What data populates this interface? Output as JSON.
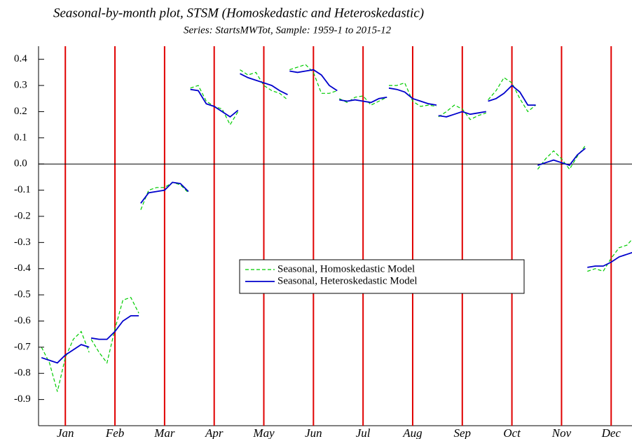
{
  "chart_data": {
    "type": "line",
    "title": "Seasonal-by-month plot, STSM (Homoskedastic and Heteroskedastic)",
    "subtitle": "Series: StartsMWTot, Sample: 1959-1 to 2015-12",
    "x": [
      0.52,
      0.68,
      0.84,
      1,
      1.16,
      1.32,
      1.48,
      1.5,
      1.52,
      1.68,
      1.84,
      2,
      2.16,
      2.32,
      2.48,
      2.5,
      2.52,
      2.68,
      2.84,
      3,
      3.16,
      3.32,
      3.48,
      3.5,
      3.52,
      3.68,
      3.84,
      4,
      4.16,
      4.32,
      4.48,
      4.5,
      4.52,
      4.68,
      4.84,
      5,
      5.16,
      5.32,
      5.48,
      5.5,
      5.52,
      5.68,
      5.84,
      6,
      6.16,
      6.32,
      6.48,
      6.5,
      6.52,
      6.68,
      6.84,
      7,
      7.16,
      7.32,
      7.48,
      7.5,
      7.52,
      7.68,
      7.84,
      8,
      8.16,
      8.32,
      8.48,
      8.5,
      8.52,
      8.68,
      8.84,
      9,
      9.16,
      9.32,
      9.48,
      9.5,
      9.52,
      9.68,
      9.84,
      10,
      10.16,
      10.32,
      10.48,
      10.5,
      10.52,
      10.68,
      10.84,
      11,
      11.16,
      11.32,
      11.48,
      11.5,
      11.52,
      11.68,
      11.84,
      12,
      12.16,
      12.32,
      12.48
    ],
    "series": [
      {
        "name": "Seasonal, Homoskedastic Model",
        "color": "#00cc00",
        "style": "dashed",
        "values": [
          -0.7,
          -0.76,
          -0.87,
          -0.74,
          -0.67,
          -0.64,
          -0.72,
          null,
          -0.67,
          -0.72,
          -0.76,
          -0.63,
          -0.52,
          -0.51,
          -0.57,
          null,
          -0.175,
          -0.1,
          -0.09,
          -0.09,
          -0.07,
          -0.08,
          -0.11,
          null,
          0.29,
          0.3,
          0.24,
          0.22,
          0.21,
          0.15,
          0.2,
          null,
          0.36,
          0.34,
          0.35,
          0.3,
          0.28,
          0.27,
          0.245,
          null,
          0.36,
          0.37,
          0.38,
          0.35,
          0.27,
          0.27,
          0.28,
          null,
          0.25,
          0.235,
          0.255,
          0.26,
          0.225,
          0.24,
          0.255,
          null,
          0.3,
          0.3,
          0.31,
          0.24,
          0.22,
          0.225,
          0.22,
          null,
          0.18,
          0.2,
          0.225,
          0.21,
          0.17,
          0.185,
          0.195,
          null,
          0.245,
          0.28,
          0.33,
          0.31,
          0.25,
          0.2,
          0.225,
          null,
          -0.02,
          0.02,
          0.05,
          0.02,
          -0.02,
          0.03,
          0.07,
          null,
          -0.41,
          -0.4,
          -0.41,
          -0.36,
          -0.32,
          -0.31,
          -0.275
        ]
      },
      {
        "name": "Seasonal, Heteroskedastic Model",
        "color": "#0000cc",
        "style": "solid",
        "values": [
          -0.74,
          -0.75,
          -0.76,
          -0.73,
          -0.71,
          -0.69,
          -0.7,
          null,
          -0.665,
          -0.67,
          -0.67,
          -0.64,
          -0.6,
          -0.58,
          -0.58,
          null,
          -0.15,
          -0.11,
          -0.105,
          -0.1,
          -0.07,
          -0.075,
          -0.105,
          null,
          0.285,
          0.28,
          0.23,
          0.22,
          0.2,
          0.18,
          0.205,
          null,
          0.345,
          0.33,
          0.32,
          0.31,
          0.3,
          0.28,
          0.265,
          null,
          0.355,
          0.35,
          0.355,
          0.36,
          0.34,
          0.3,
          0.28,
          null,
          0.245,
          0.24,
          0.245,
          0.24,
          0.235,
          0.25,
          0.255,
          null,
          0.29,
          0.285,
          0.275,
          0.25,
          0.24,
          0.23,
          0.225,
          null,
          0.185,
          0.18,
          0.19,
          0.2,
          0.19,
          0.195,
          0.2,
          null,
          0.24,
          0.25,
          0.27,
          0.3,
          0.275,
          0.225,
          0.225,
          null,
          -0.005,
          0.005,
          0.015,
          0.005,
          -0.005,
          0.035,
          0.06,
          null,
          -0.395,
          -0.39,
          -0.39,
          -0.375,
          -0.355,
          -0.345,
          -0.335
        ]
      }
    ],
    "xlim": [
      0.46,
      12.42
    ],
    "xticks": [
      {
        "value": 1,
        "label": "Jan"
      },
      {
        "value": 2,
        "label": "Feb"
      },
      {
        "value": 3,
        "label": "Mar"
      },
      {
        "value": 4,
        "label": "Apr"
      },
      {
        "value": 5,
        "label": "May"
      },
      {
        "value": 6,
        "label": "Jun"
      },
      {
        "value": 7,
        "label": "Jul"
      },
      {
        "value": 8,
        "label": "Aug"
      },
      {
        "value": 9,
        "label": "Sep"
      },
      {
        "value": 10,
        "label": "Oct"
      },
      {
        "value": 11,
        "label": "Nov"
      },
      {
        "value": 12,
        "label": "Dec"
      }
    ],
    "xgrid": true,
    "xgrid_color": "#e00000",
    "ylim": [
      -1.0,
      0.45
    ],
    "yticks": [
      0.4,
      0.3,
      0.2,
      0.1,
      {
        "value": 0,
        "label": "0.0"
      },
      -0.1,
      -0.2,
      -0.3,
      -0.4,
      -0.5,
      -0.6,
      -0.7,
      -0.8,
      -0.9
    ],
    "hline": 0
  }
}
